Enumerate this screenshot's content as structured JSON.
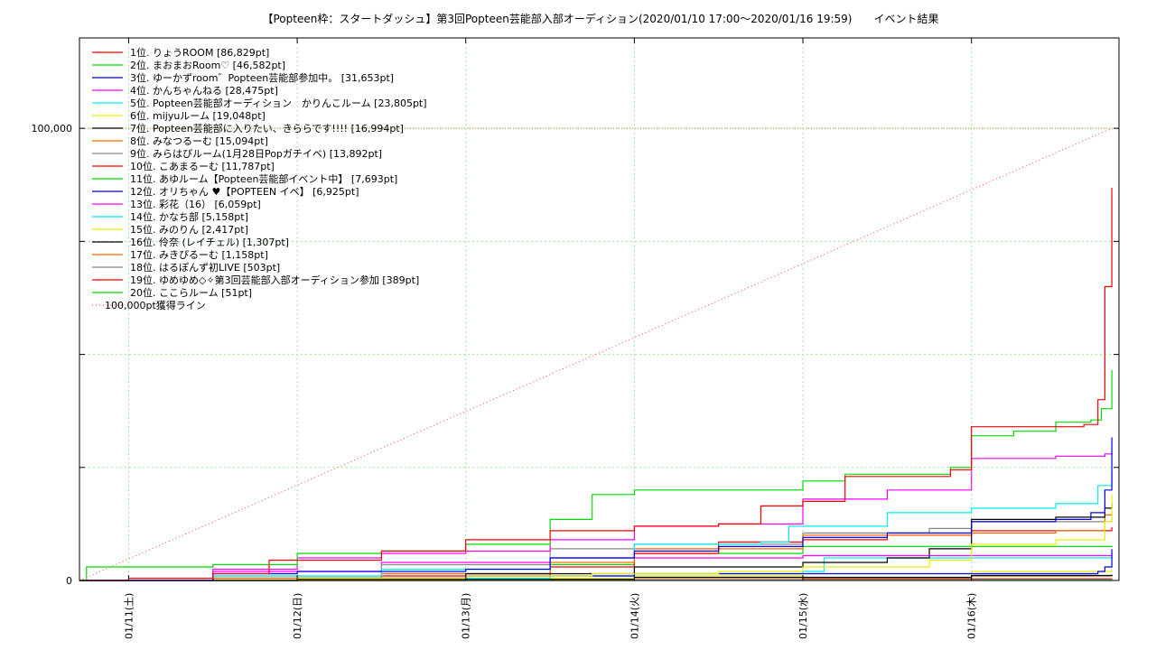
{
  "chart_data": {
    "type": "line",
    "title": "【Popteen枠：スタートダッシュ】第3回Popteen芸能部入部オーディション(2020/01/10 17:00〜2020/01/16 19:59)　　イベント結果",
    "xlabel": "",
    "ylabel": "",
    "x_start": "2020/01/10 17:00",
    "x_end": "2020/01/16 21:00",
    "ylim": [
      0,
      120000
    ],
    "yticks": [
      {
        "value": 0,
        "label": "0"
      },
      {
        "value": 25000,
        "label": ""
      },
      {
        "value": 50000,
        "label": ""
      },
      {
        "value": 75000,
        "label": ""
      },
      {
        "value": 100000,
        "label": "100,000"
      }
    ],
    "xticks": [
      {
        "date": "2020/01/11 00:00",
        "label": "01/11(土)"
      },
      {
        "date": "2020/01/12 00:00",
        "label": "01/12(日)"
      },
      {
        "date": "2020/01/13 00:00",
        "label": "01/13(月)"
      },
      {
        "date": "2020/01/14 00:00",
        "label": "01/14(火)"
      },
      {
        "date": "2020/01/15 00:00",
        "label": "01/15(水)"
      },
      {
        "date": "2020/01/16 00:00",
        "label": "01/16(木)"
      }
    ],
    "grid": true,
    "legend_position": "top-left",
    "series": [
      {
        "name": "1位. りょうROOM [86,829pt]",
        "color": "#ff0000",
        "points": [
          [
            "2020/01/10 17:00",
            0
          ],
          [
            "2020/01/11 00:00",
            500
          ],
          [
            "2020/01/11 12:00",
            1500
          ],
          [
            "2020/01/11 20:00",
            4500
          ],
          [
            "2020/01/12 12:00",
            6500
          ],
          [
            "2020/01/13 00:00",
            9000
          ],
          [
            "2020/01/13 12:00",
            11000
          ],
          [
            "2020/01/14 00:00",
            12000
          ],
          [
            "2020/01/14 12:00",
            12500
          ],
          [
            "2020/01/14 18:00",
            16500
          ],
          [
            "2020/01/15 00:00",
            17500
          ],
          [
            "2020/01/15 06:00",
            23000
          ],
          [
            "2020/01/15 18:00",
            23000
          ],
          [
            "2020/01/15 21:00",
            24500
          ],
          [
            "2020/01/16 00:00",
            34000
          ],
          [
            "2020/01/16 12:00",
            34000
          ],
          [
            "2020/01/16 16:00",
            34500
          ],
          [
            "2020/01/16 18:00",
            40000
          ],
          [
            "2020/01/16 19:00",
            65000
          ],
          [
            "2020/01/16 19:59",
            86829
          ]
        ]
      },
      {
        "name": "2位. まおまおRoom♡ [46,582pt]",
        "color": "#00dd00",
        "points": [
          [
            "2020/01/10 17:00",
            0
          ],
          [
            "2020/01/10 18:00",
            3000
          ],
          [
            "2020/01/11 12:00",
            3500
          ],
          [
            "2020/01/12 00:00",
            6000
          ],
          [
            "2020/01/12 12:00",
            6500
          ],
          [
            "2020/01/13 00:00",
            8000
          ],
          [
            "2020/01/13 12:00",
            13500
          ],
          [
            "2020/01/13 18:00",
            19000
          ],
          [
            "2020/01/14 00:00",
            20000
          ],
          [
            "2020/01/14 12:00",
            20000
          ],
          [
            "2020/01/15 00:00",
            22000
          ],
          [
            "2020/01/15 06:00",
            23500
          ],
          [
            "2020/01/15 18:00",
            23500
          ],
          [
            "2020/01/15 21:00",
            25000
          ],
          [
            "2020/01/16 00:00",
            32000
          ],
          [
            "2020/01/16 06:00",
            33000
          ],
          [
            "2020/01/16 12:00",
            35000
          ],
          [
            "2020/01/16 17:00",
            35500
          ],
          [
            "2020/01/16 18:30",
            38000
          ],
          [
            "2020/01/16 19:59",
            46582
          ]
        ]
      },
      {
        "name": "3位. ゆーかずroom゛Popteen芸能部参加中。 [31,653pt]",
        "color": "#0000ee",
        "points": [
          [
            "2020/01/10 17:00",
            0
          ],
          [
            "2020/01/11 12:00",
            1500
          ],
          [
            "2020/01/12 00:00",
            2000
          ],
          [
            "2020/01/13 00:00",
            2500
          ],
          [
            "2020/01/13 12:00",
            5000
          ],
          [
            "2020/01/14 00:00",
            6500
          ],
          [
            "2020/01/14 12:00",
            7500
          ],
          [
            "2020/01/15 00:00",
            9500
          ],
          [
            "2020/01/15 12:00",
            10500
          ],
          [
            "2020/01/16 00:00",
            13000
          ],
          [
            "2020/01/16 12:00",
            13500
          ],
          [
            "2020/01/16 17:00",
            15000
          ],
          [
            "2020/01/16 19:00",
            20000
          ],
          [
            "2020/01/16 19:59",
            31653
          ]
        ]
      },
      {
        "name": "4位. かんちゃんねる [28,475pt]",
        "color": "#ff00ff",
        "points": [
          [
            "2020/01/10 17:00",
            0
          ],
          [
            "2020/01/11 12:00",
            2500
          ],
          [
            "2020/01/12 00:00",
            5000
          ],
          [
            "2020/01/12 12:00",
            6000
          ],
          [
            "2020/01/13 00:00",
            6500
          ],
          [
            "2020/01/13 12:00",
            9000
          ],
          [
            "2020/01/14 00:00",
            12000
          ],
          [
            "2020/01/14 12:00",
            12500
          ],
          [
            "2020/01/15 00:00",
            18000
          ],
          [
            "2020/01/15 12:00",
            20000
          ],
          [
            "2020/01/16 00:00",
            27000
          ],
          [
            "2020/01/16 12:00",
            27500
          ],
          [
            "2020/01/16 19:00",
            28000
          ],
          [
            "2020/01/16 19:59",
            28475
          ]
        ]
      },
      {
        "name": "5位. Popteen芸能部オーディション　かりんこルーム [23,805pt]",
        "color": "#00eeee",
        "points": [
          [
            "2020/01/10 17:00",
            0
          ],
          [
            "2020/01/11 12:00",
            1000
          ],
          [
            "2020/01/12 12:00",
            2500
          ],
          [
            "2020/01/13 12:00",
            5000
          ],
          [
            "2020/01/14 00:00",
            8000
          ],
          [
            "2020/01/14 18:00",
            8500
          ],
          [
            "2020/01/14 22:00",
            12000
          ],
          [
            "2020/01/15 12:00",
            15000
          ],
          [
            "2020/01/16 00:00",
            16000
          ],
          [
            "2020/01/16 12:00",
            17000
          ],
          [
            "2020/01/16 18:00",
            21000
          ],
          [
            "2020/01/16 19:59",
            23805
          ]
        ]
      },
      {
        "name": "6位. mijyuルーム [19,048pt]",
        "color": "#eeee00",
        "points": [
          [
            "2020/01/10 17:00",
            0
          ],
          [
            "2020/01/12 00:00",
            500
          ],
          [
            "2020/01/13 00:00",
            1000
          ],
          [
            "2020/01/13 18:00",
            1500
          ],
          [
            "2020/01/14 12:00",
            2000
          ],
          [
            "2020/01/15 00:00",
            3000
          ],
          [
            "2020/01/15 18:00",
            4500
          ],
          [
            "2020/01/16 00:00",
            8000
          ],
          [
            "2020/01/16 12:00",
            9000
          ],
          [
            "2020/01/16 19:00",
            13000
          ],
          [
            "2020/01/16 19:59",
            19048
          ]
        ]
      },
      {
        "name": "7位. Popteen芸能部に入りたい、きららです!!!! [16,994pt]",
        "color": "#000000",
        "points": [
          [
            "2020/01/10 17:00",
            0
          ],
          [
            "2020/01/12 00:00",
            500
          ],
          [
            "2020/01/13 00:00",
            1500
          ],
          [
            "2020/01/14 00:00",
            3000
          ],
          [
            "2020/01/15 00:00",
            4000
          ],
          [
            "2020/01/15 12:00",
            5000
          ],
          [
            "2020/01/15 18:00",
            7000
          ],
          [
            "2020/01/16 00:00",
            13500
          ],
          [
            "2020/01/16 12:00",
            14000
          ],
          [
            "2020/01/16 19:00",
            16000
          ],
          [
            "2020/01/16 19:59",
            16994
          ]
        ]
      },
      {
        "name": "8位. みなつるーむ [15,094pt]",
        "color": "#ff6600",
        "points": [
          [
            "2020/01/10 17:00",
            0
          ],
          [
            "2020/01/11 12:00",
            500
          ],
          [
            "2020/01/12 12:00",
            1500
          ],
          [
            "2020/01/13 12:00",
            4000
          ],
          [
            "2020/01/14 00:00",
            7000
          ],
          [
            "2020/01/15 00:00",
            10000
          ],
          [
            "2020/01/16 00:00",
            10500
          ],
          [
            "2020/01/16 12:00",
            11000
          ],
          [
            "2020/01/16 19:00",
            14500
          ],
          [
            "2020/01/16 19:59",
            15094
          ]
        ]
      },
      {
        "name": "9位. みらはぴルーム(1月28日Popガチイベ) [13,892pt]",
        "color": "#888888",
        "points": [
          [
            "2020/01/10 17:00",
            0
          ],
          [
            "2020/01/11 12:00",
            1000
          ],
          [
            "2020/01/12 12:00",
            3500
          ],
          [
            "2020/01/13 12:00",
            7000
          ],
          [
            "2020/01/14 00:00",
            8000
          ],
          [
            "2020/01/15 00:00",
            10500
          ],
          [
            "2020/01/15 18:00",
            11500
          ],
          [
            "2020/01/16 00:00",
            13000
          ],
          [
            "2020/01/16 19:59",
            13892
          ]
        ]
      },
      {
        "name": "10位. こあまるーむ [11,787pt]",
        "color": "#ff0000",
        "points": [
          [
            "2020/01/10 17:00",
            0
          ],
          [
            "2020/01/11 12:00",
            500
          ],
          [
            "2020/01/12 12:00",
            1000
          ],
          [
            "2020/01/13 12:00",
            3000
          ],
          [
            "2020/01/14 00:00",
            6000
          ],
          [
            "2020/01/14 12:00",
            8500
          ],
          [
            "2020/01/15 00:00",
            9000
          ],
          [
            "2020/01/15 12:00",
            10000
          ],
          [
            "2020/01/16 00:00",
            11000
          ],
          [
            "2020/01/16 19:59",
            11787
          ]
        ]
      },
      {
        "name": "11位. あゆルーム【Popteen芸能部イベント中】 [7,693pt]",
        "color": "#00dd00",
        "points": [
          [
            "2020/01/10 17:00",
            0
          ],
          [
            "2020/01/11 12:00",
            500
          ],
          [
            "2020/01/12 12:00",
            1500
          ],
          [
            "2020/01/13 12:00",
            3500
          ],
          [
            "2020/01/14 00:00",
            6000
          ],
          [
            "2020/01/15 00:00",
            7500
          ],
          [
            "2020/01/16 19:59",
            7693
          ]
        ]
      },
      {
        "name": "12位. オリちゃん ♥【POPTEEN イベ】 [6,925pt]",
        "color": "#0000ee",
        "points": [
          [
            "2020/01/10 17:00",
            0
          ],
          [
            "2020/01/12 00:00",
            500
          ],
          [
            "2020/01/13 00:00",
            1000
          ],
          [
            "2020/01/14 00:00",
            1500
          ],
          [
            "2020/01/15 00:00",
            1500
          ],
          [
            "2020/01/16 00:00",
            1500
          ],
          [
            "2020/01/16 18:00",
            2000
          ],
          [
            "2020/01/16 19:00",
            3000
          ],
          [
            "2020/01/16 19:59",
            6925
          ]
        ]
      },
      {
        "name": "13位. 彩花（16） [6,059pt]",
        "color": "#ff00ff",
        "points": [
          [
            "2020/01/10 17:00",
            0
          ],
          [
            "2020/01/11 12:00",
            2000
          ],
          [
            "2020/01/12 12:00",
            4000
          ],
          [
            "2020/01/13 12:00",
            5000
          ],
          [
            "2020/01/15 00:00",
            5500
          ],
          [
            "2020/01/16 19:59",
            6059
          ]
        ]
      },
      {
        "name": "14位. かなち部 [5,158pt]",
        "color": "#00eeee",
        "points": [
          [
            "2020/01/10 17:00",
            0
          ],
          [
            "2020/01/12 00:00",
            500
          ],
          [
            "2020/01/13 12:00",
            1000
          ],
          [
            "2020/01/14 00:00",
            1500
          ],
          [
            "2020/01/15 00:00",
            2000
          ],
          [
            "2020/01/15 03:00",
            5000
          ],
          [
            "2020/01/16 19:59",
            5158
          ]
        ]
      },
      {
        "name": "15位. みのりん [2,417pt]",
        "color": "#eeee00",
        "points": [
          [
            "2020/01/10 17:00",
            0
          ],
          [
            "2020/01/12 00:00",
            500
          ],
          [
            "2020/01/14 00:00",
            1000
          ],
          [
            "2020/01/15 00:00",
            1500
          ],
          [
            "2020/01/16 00:00",
            2000
          ],
          [
            "2020/01/16 19:59",
            2417
          ]
        ]
      },
      {
        "name": "16位. 伶奈 (レイチェル) [1,307pt]",
        "color": "#000000",
        "points": [
          [
            "2020/01/10 17:00",
            0
          ],
          [
            "2020/01/12 00:00",
            300
          ],
          [
            "2020/01/14 00:00",
            700
          ],
          [
            "2020/01/16 00:00",
            1100
          ],
          [
            "2020/01/16 19:59",
            1307
          ]
        ]
      },
      {
        "name": "17位. みきぴるーむ [1,158pt]",
        "color": "#ff6600",
        "points": [
          [
            "2020/01/10 17:00",
            0
          ],
          [
            "2020/01/12 00:00",
            300
          ],
          [
            "2020/01/14 00:00",
            600
          ],
          [
            "2020/01/16 00:00",
            1000
          ],
          [
            "2020/01/16 19:59",
            1158
          ]
        ]
      },
      {
        "name": "18位. はるぽんず初LIVE [503pt]",
        "color": "#888888",
        "points": [
          [
            "2020/01/10 17:00",
            0
          ],
          [
            "2020/01/13 00:00",
            200
          ],
          [
            "2020/01/15 00:00",
            400
          ],
          [
            "2020/01/16 19:59",
            503
          ]
        ]
      },
      {
        "name": "19位. ゆめゆめ◇✧第3回芸能部入部オーディション参加 [389pt]",
        "color": "#ff0000",
        "points": [
          [
            "2020/01/10 17:00",
            0
          ],
          [
            "2020/01/13 00:00",
            150
          ],
          [
            "2020/01/15 00:00",
            300
          ],
          [
            "2020/01/16 19:59",
            389
          ]
        ]
      },
      {
        "name": "20位. ここらルーム [51pt]",
        "color": "#00dd00",
        "points": [
          [
            "2020/01/10 17:00",
            0
          ],
          [
            "2020/01/14 00:00",
            30
          ],
          [
            "2020/01/16 19:59",
            51
          ]
        ]
      }
    ],
    "target_line": {
      "name": "100,000pt獲得ライン",
      "color": "#ff4444",
      "value": 100000,
      "from": "2020/01/10 17:00",
      "to": "2020/01/16 19:59"
    }
  }
}
